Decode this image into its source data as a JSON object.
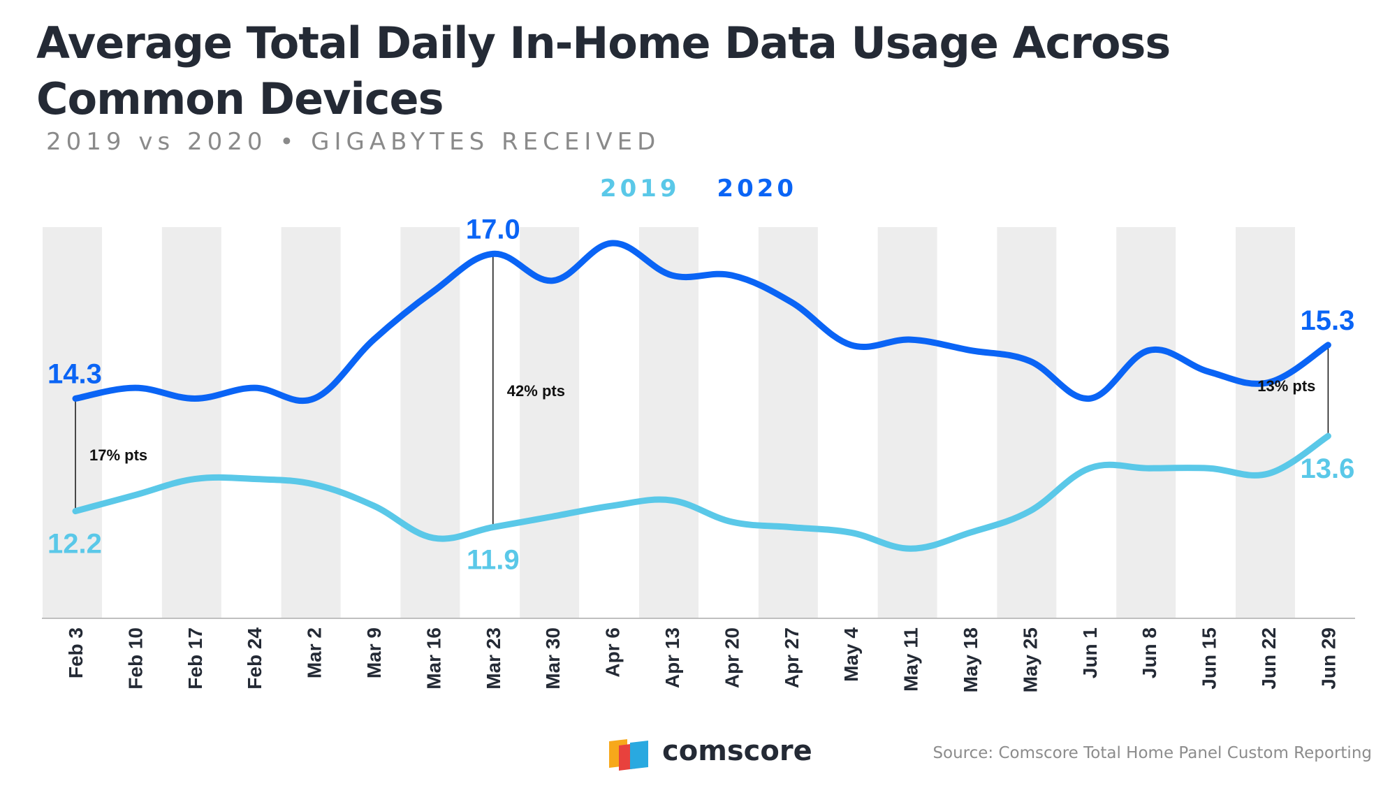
{
  "title": "Average Total Daily In-Home Data Usage Across Common Devices",
  "subtitle": "2019 vs 2020 • GIGABYTES RECEIVED",
  "source": "Source: Comscore Total Home Panel Custom Reporting",
  "brand": "comscore",
  "colors": {
    "series_2019": "#5ac8e8",
    "series_2020": "#0a64f5",
    "band": "#ededed",
    "axis_text": "#242a35"
  },
  "chart_data": {
    "type": "line",
    "legend_position": "top-center",
    "x": [
      "Feb 3",
      "Feb 10",
      "Feb 17",
      "Feb 24",
      "Mar 2",
      "Mar 9",
      "Mar 16",
      "Mar 23",
      "Mar 30",
      "Apr 6",
      "Apr 13",
      "Apr 20",
      "Apr 27",
      "May 4",
      "May 11",
      "May 18",
      "May 25",
      "Jun 1",
      "Jun 8",
      "Jun 15",
      "Jun 22",
      "Jun 29"
    ],
    "ylim": [
      10.2,
      17.5
    ],
    "series": [
      {
        "name": "2019",
        "color": "#5ac8e8",
        "values": [
          12.2,
          12.5,
          12.8,
          12.8,
          12.7,
          12.3,
          11.7,
          11.9,
          12.1,
          12.3,
          12.4,
          12.0,
          11.9,
          11.8,
          11.5,
          11.8,
          12.2,
          13.0,
          13.0,
          13.0,
          12.9,
          13.6
        ]
      },
      {
        "name": "2020",
        "color": "#0a64f5",
        "values": [
          14.3,
          14.5,
          14.3,
          14.5,
          14.3,
          15.4,
          16.3,
          17.0,
          16.5,
          17.2,
          16.6,
          16.6,
          16.1,
          15.3,
          15.4,
          15.2,
          15.0,
          14.3,
          15.2,
          14.8,
          14.6,
          15.3
        ]
      }
    ],
    "point_labels": [
      {
        "series": "2020",
        "index": 0,
        "text": "14.3"
      },
      {
        "series": "2020",
        "index": 7,
        "text": "17.0"
      },
      {
        "series": "2020",
        "index": 21,
        "text": "15.3"
      },
      {
        "series": "2019",
        "index": 0,
        "text": "12.2"
      },
      {
        "series": "2019",
        "index": 7,
        "text": "11.9"
      },
      {
        "series": "2019",
        "index": 21,
        "text": "13.6"
      }
    ],
    "annotations": [
      {
        "index": 0,
        "text": "17% pts"
      },
      {
        "index": 7,
        "text": "42% pts"
      },
      {
        "index": 21,
        "text": "13% pts"
      }
    ]
  }
}
